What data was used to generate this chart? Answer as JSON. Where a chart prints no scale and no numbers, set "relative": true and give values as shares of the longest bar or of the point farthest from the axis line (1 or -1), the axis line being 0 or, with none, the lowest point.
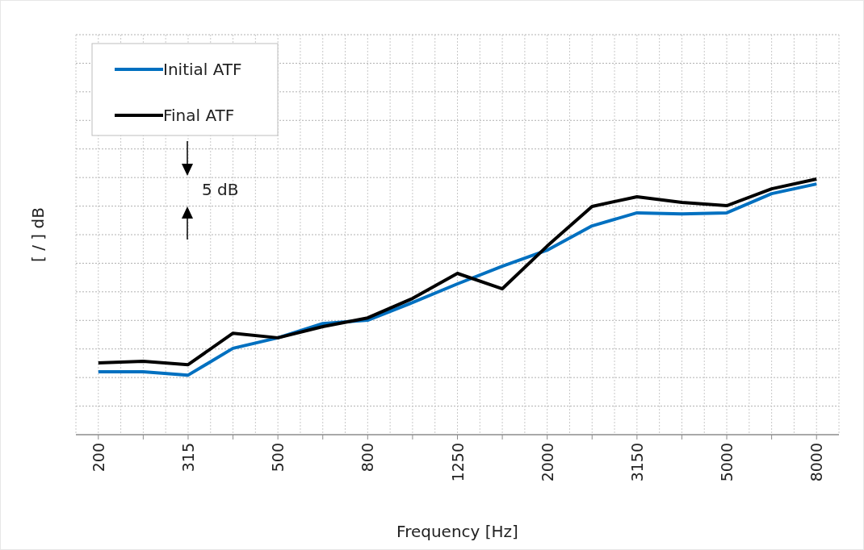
{
  "chart_data": {
    "type": "line",
    "xlabel": "Frequency [Hz]",
    "ylabel": "[ / ] dB",
    "relative": true,
    "grid": true,
    "legend": "top left",
    "line_style": "solid",
    "marker": "none",
    "annotations": [
      "5 dB"
    ],
    "categories": [
      "200",
      null,
      "315",
      null,
      "500",
      null,
      "800",
      null,
      "1250",
      null,
      "2000",
      null,
      "3150",
      null,
      "5000",
      null,
      "8000"
    ],
    "series": [
      {
        "name": "Initial ATF",
        "color": "#0070c0",
        "values": [
          0.246,
          0.246,
          0.233,
          0.338,
          0.379,
          0.435,
          0.448,
          0.517,
          0.59,
          0.659,
          0.722,
          0.817,
          0.868,
          0.864,
          0.868,
          0.943,
          0.981
        ]
      },
      {
        "name": "Final ATF",
        "color": "#000000",
        "values": [
          0.281,
          0.287,
          0.274,
          0.397,
          0.379,
          0.423,
          0.457,
          0.533,
          0.631,
          0.571,
          0.738,
          0.893,
          0.931,
          0.909,
          0.896,
          0.962,
          1
        ]
      }
    ]
  }
}
